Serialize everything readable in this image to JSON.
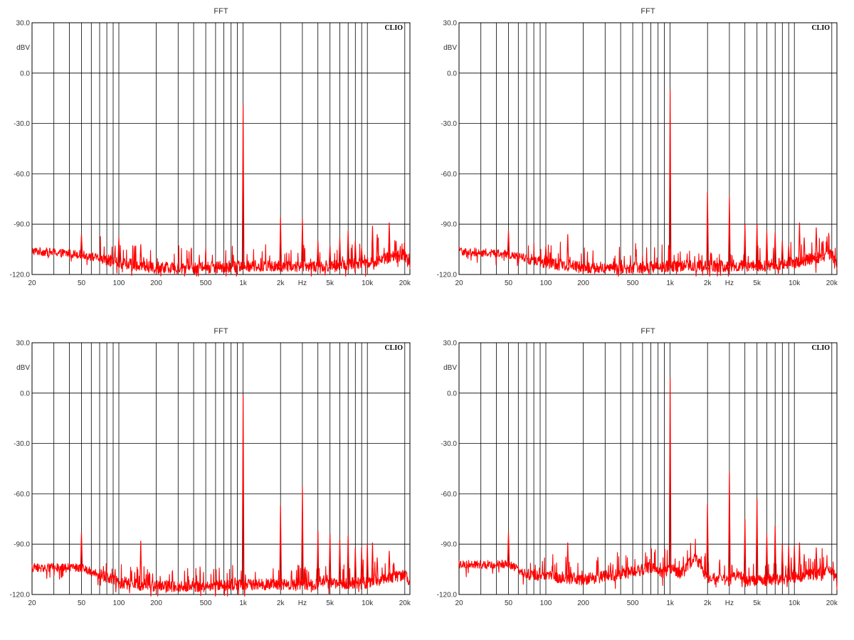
{
  "chart_data": [
    {
      "type": "line",
      "title": "FFT",
      "brand": "CLIO",
      "ylabel": "dBV",
      "xlabel": "Hz",
      "xscale": "log",
      "xlim": [
        20,
        22000
      ],
      "ylim": [
        -120,
        30
      ],
      "yticks": [
        "30.0",
        "0.0",
        "-30.0",
        "-60.0",
        "-90.0",
        "-120.0"
      ],
      "xticks": [
        "20",
        "50",
        "100",
        "200",
        "500",
        "1k",
        "2k",
        "Hz",
        "5k",
        "10k",
        "20k"
      ],
      "grid": true,
      "series_color": "#ff0000",
      "noise_profile": [
        [
          20,
          -106
        ],
        [
          50,
          -108
        ],
        [
          100,
          -113
        ],
        [
          200,
          -116
        ],
        [
          500,
          -116
        ],
        [
          1000,
          -115
        ],
        [
          5000,
          -115
        ],
        [
          10000,
          -113
        ],
        [
          20000,
          -108
        ],
        [
          22000,
          -114
        ]
      ],
      "peaks": [
        [
          50,
          -96
        ],
        [
          100,
          -98
        ],
        [
          150,
          -102
        ],
        [
          1000,
          -19
        ],
        [
          2000,
          -86
        ],
        [
          3000,
          -87
        ],
        [
          4000,
          -100
        ],
        [
          5000,
          -103
        ],
        [
          6000,
          -98
        ],
        [
          7000,
          -94
        ],
        [
          8000,
          -100
        ],
        [
          9000,
          -104
        ],
        [
          11000,
          -91
        ],
        [
          12000,
          -96
        ],
        [
          15000,
          -89
        ],
        [
          17000,
          -100
        ]
      ]
    },
    {
      "type": "line",
      "title": "FFT",
      "brand": "CLIO",
      "ylabel": "dBV",
      "xlabel": "Hz",
      "xscale": "log",
      "xlim": [
        20,
        22000
      ],
      "ylim": [
        -120,
        30
      ],
      "yticks": [
        "30.0",
        "0.0",
        "-30.0",
        "-60.0",
        "-90.0",
        "-120.0"
      ],
      "xticks": [
        "20",
        "50",
        "100",
        "200",
        "500",
        "1k",
        "2k",
        "Hz",
        "5k",
        "10k",
        "20k"
      ],
      "grid": true,
      "series_color": "#ff0000",
      "noise_profile": [
        [
          20,
          -106
        ],
        [
          50,
          -108
        ],
        [
          100,
          -113
        ],
        [
          200,
          -116
        ],
        [
          500,
          -116
        ],
        [
          1000,
          -115
        ],
        [
          5000,
          -115
        ],
        [
          10000,
          -113
        ],
        [
          20000,
          -108
        ],
        [
          22000,
          -114
        ]
      ],
      "peaks": [
        [
          50,
          -94
        ],
        [
          100,
          -103
        ],
        [
          150,
          -96
        ],
        [
          1000,
          -10
        ],
        [
          2000,
          -71
        ],
        [
          3000,
          -74
        ],
        [
          4000,
          -90
        ],
        [
          5000,
          -90
        ],
        [
          6000,
          -94
        ],
        [
          7000,
          -95
        ],
        [
          8000,
          -100
        ],
        [
          9000,
          -103
        ],
        [
          11000,
          -89
        ],
        [
          12000,
          -98
        ],
        [
          15000,
          -92
        ],
        [
          17000,
          -100
        ]
      ]
    },
    {
      "type": "line",
      "title": "FFT",
      "brand": "CLIO",
      "ylabel": "dBV",
      "xlabel": "Hz",
      "xscale": "log",
      "xlim": [
        20,
        22000
      ],
      "ylim": [
        -120,
        30
      ],
      "yticks": [
        "30.0",
        "0.0",
        "-30.0",
        "-60.0",
        "-90.0",
        "-120.0"
      ],
      "xticks": [
        "20",
        "50",
        "100",
        "200",
        "500",
        "1k",
        "2k",
        "Hz",
        "5k",
        "10k",
        "20k"
      ],
      "grid": true,
      "series_color": "#ff0000",
      "noise_profile": [
        [
          20,
          -104
        ],
        [
          50,
          -104
        ],
        [
          100,
          -113
        ],
        [
          200,
          -115
        ],
        [
          500,
          -115
        ],
        [
          1000,
          -114
        ],
        [
          5000,
          -114
        ],
        [
          10000,
          -113
        ],
        [
          20000,
          -108
        ],
        [
          22000,
          -114
        ]
      ],
      "peaks": [
        [
          50,
          -83
        ],
        [
          150,
          -88
        ],
        [
          1000,
          -1
        ],
        [
          2000,
          -67
        ],
        [
          3000,
          -56
        ],
        [
          4000,
          -82
        ],
        [
          5000,
          -84
        ],
        [
          6000,
          -87
        ],
        [
          7000,
          -85
        ],
        [
          8000,
          -92
        ],
        [
          9000,
          -92
        ],
        [
          10000,
          -90
        ],
        [
          11000,
          -89
        ],
        [
          12000,
          -98
        ],
        [
          15000,
          -94
        ]
      ]
    },
    {
      "type": "line",
      "title": "FFT",
      "brand": "CLIO",
      "ylabel": "dBV",
      "xlabel": "Hz",
      "xscale": "log",
      "xlim": [
        20,
        22000
      ],
      "ylim": [
        -120,
        30
      ],
      "yticks": [
        "30.0",
        "0.0",
        "-30.0",
        "-60.0",
        "-90.0",
        "-120.0"
      ],
      "xticks": [
        "20",
        "50",
        "100",
        "200",
        "500",
        "1k",
        "2k",
        "Hz",
        "5k",
        "10k",
        "20k"
      ],
      "grid": true,
      "series_color": "#ff0000",
      "noise_profile": [
        [
          20,
          -102
        ],
        [
          50,
          -102
        ],
        [
          70,
          -108
        ],
        [
          200,
          -111
        ],
        [
          400,
          -108
        ],
        [
          700,
          -104
        ],
        [
          900,
          -107
        ],
        [
          1000,
          -104
        ],
        [
          1200,
          -107
        ],
        [
          1600,
          -98
        ],
        [
          2000,
          -110
        ],
        [
          3000,
          -112
        ],
        [
          3500,
          -107
        ],
        [
          4000,
          -112
        ],
        [
          8000,
          -111
        ],
        [
          20000,
          -106
        ],
        [
          22000,
          -112
        ]
      ],
      "peaks": [
        [
          50,
          -83
        ],
        [
          150,
          -89
        ],
        [
          1000,
          9
        ],
        [
          2000,
          -66
        ],
        [
          3000,
          -47
        ],
        [
          4000,
          -75
        ],
        [
          5000,
          -63
        ],
        [
          6000,
          -84
        ],
        [
          7000,
          -79
        ],
        [
          8000,
          -90
        ],
        [
          9000,
          -91
        ],
        [
          10000,
          -91
        ],
        [
          11000,
          -89
        ],
        [
          12000,
          -96
        ],
        [
          15000,
          -92
        ]
      ]
    }
  ]
}
